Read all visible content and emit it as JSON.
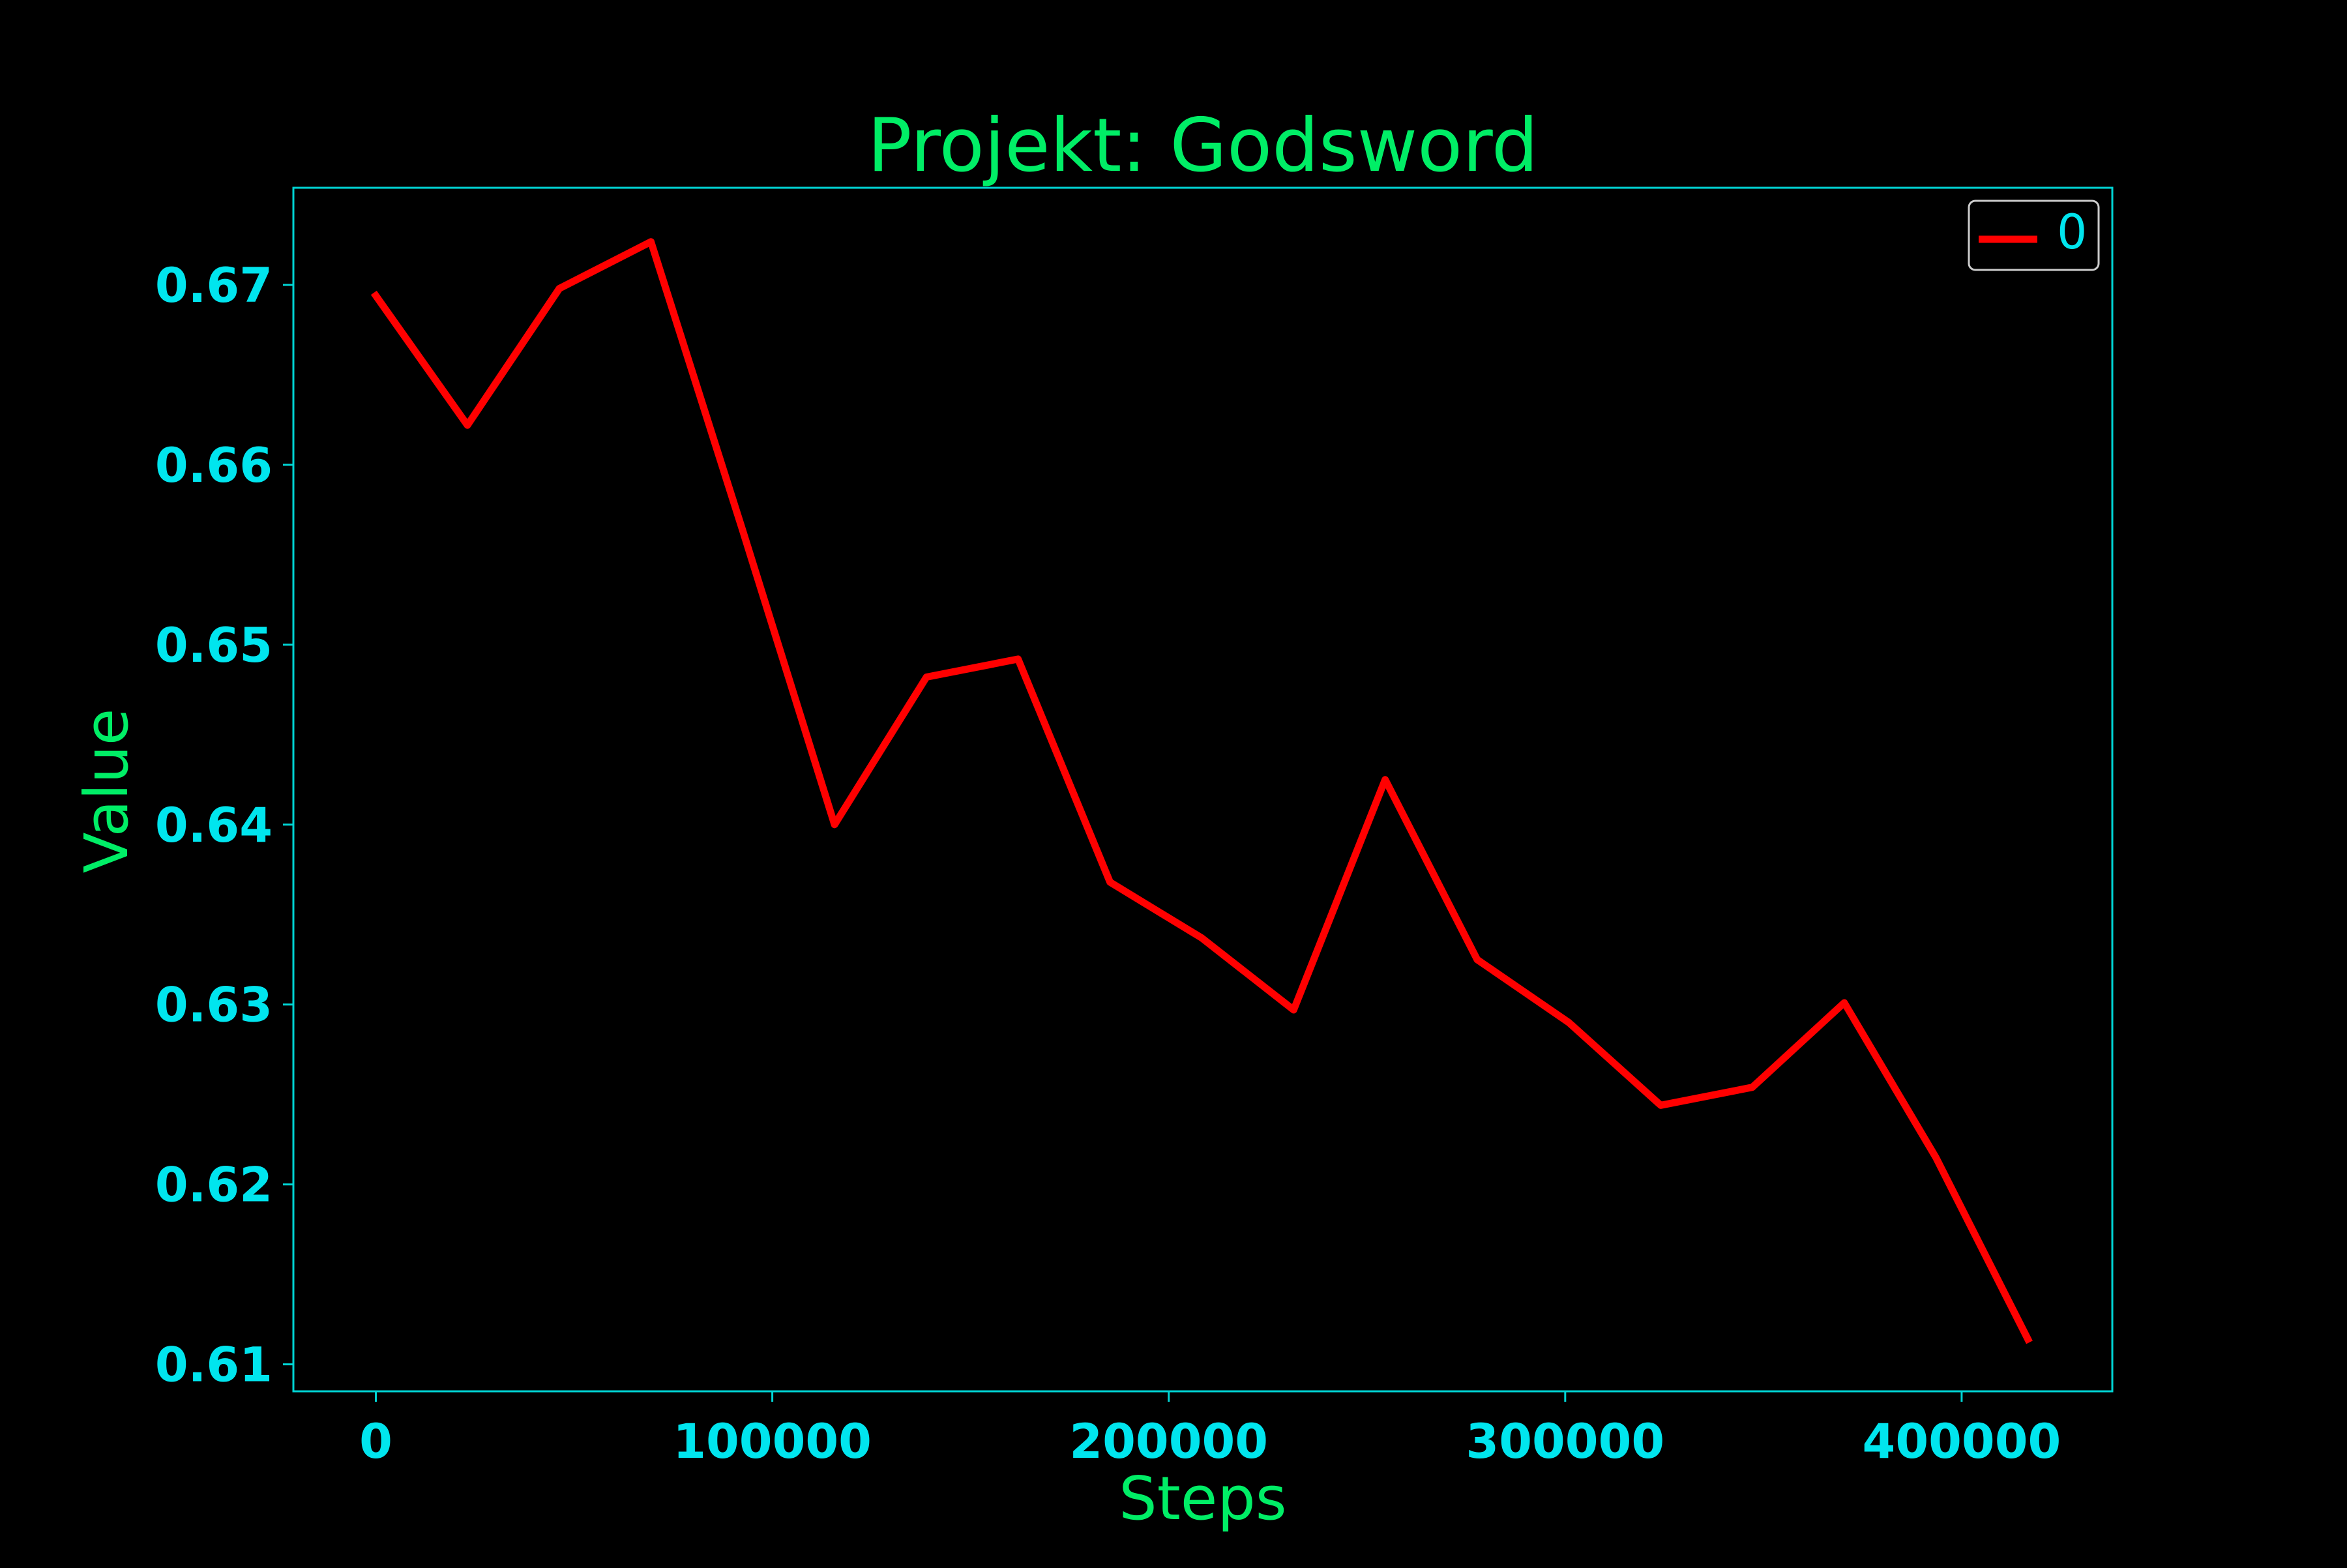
{
  "colors": {
    "background": "#000000",
    "title": "#00ee66",
    "axis_label": "#00ee66",
    "tick_label": "#00e5ee",
    "axes_frame": "#00d4d4",
    "series_line": "#ff0000",
    "legend_text": "#00e5ee",
    "legend_frame": "#cccccc"
  },
  "chart_data": {
    "type": "line",
    "title": "Projekt: Godsword",
    "xlabel": "Steps",
    "ylabel": "Value",
    "xlim": [
      -20800,
      438000
    ],
    "ylim": [
      0.6085,
      0.6754
    ],
    "x_ticks": [
      0,
      100000,
      200000,
      300000,
      400000
    ],
    "x_tick_labels": [
      "0",
      "100000",
      "200000",
      "300000",
      "400000"
    ],
    "y_ticks": [
      0.61,
      0.62,
      0.63,
      0.64,
      0.65,
      0.66,
      0.67
    ],
    "y_tick_labels": [
      "0.61",
      "0.62",
      "0.63",
      "0.64",
      "0.65",
      "0.66",
      "0.67"
    ],
    "grid": false,
    "legend_position": "top-right",
    "series": [
      {
        "name": "0",
        "color": "#ff0000",
        "x": [
          0,
          23100,
          46300,
          69400,
          92600,
          115700,
          138900,
          162000,
          185200,
          208300,
          231500,
          254600,
          277800,
          300900,
          324100,
          347200,
          370400,
          393500,
          416700
        ],
        "y": [
          0.6694,
          0.6622,
          0.6698,
          0.6724,
          0.6563,
          0.64,
          0.6482,
          0.6492,
          0.6368,
          0.6337,
          0.6297,
          0.6425,
          0.6325,
          0.629,
          0.6244,
          0.6254,
          0.6301,
          0.6215,
          0.6114
        ]
      }
    ]
  }
}
